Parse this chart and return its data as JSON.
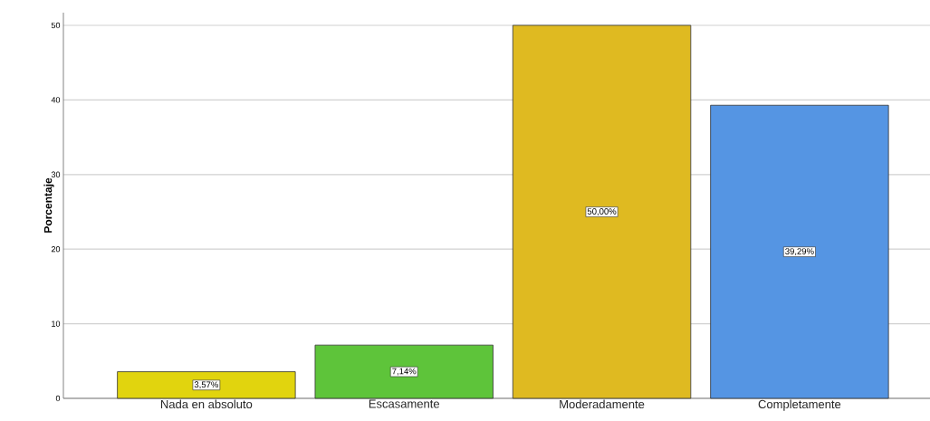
{
  "chart_data": {
    "type": "bar",
    "ylabel": "Porcentaje",
    "categories": [
      "Nada en absoluto",
      "Escasamente",
      "Moderadamente",
      "Completamente"
    ],
    "values": [
      3.57,
      7.14,
      50.0,
      39.29
    ],
    "colors": [
      "#e1d40e",
      "#5ec43a",
      "#dfba21",
      "#5595e3"
    ],
    "value_labels": [
      "3,57%",
      "7,14%",
      "50,00%",
      "39,29%"
    ],
    "ylim": [
      0,
      51.7
    ],
    "yticks": [
      0,
      10,
      20,
      30,
      40,
      50
    ],
    "grid": "y"
  }
}
